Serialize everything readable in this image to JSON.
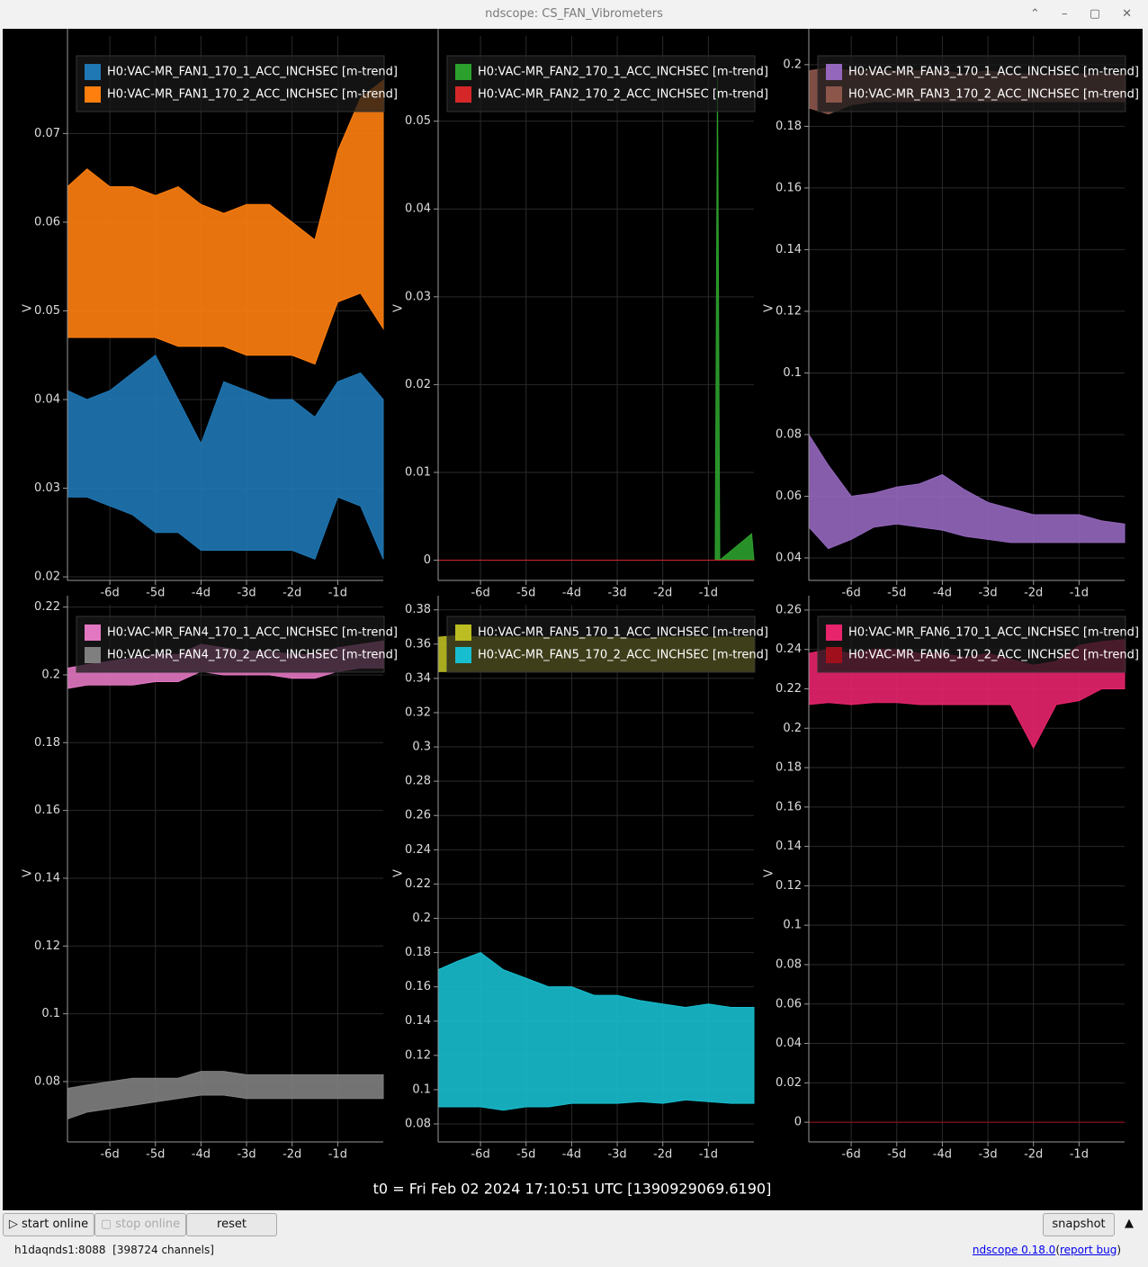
{
  "window": {
    "title": "ndscope: CS_FAN_Vibrometers"
  },
  "t0": "t0 = Fri Feb 02 2024 17:10:51 UTC [1390929069.6190]",
  "buttons": {
    "start": "start online",
    "stop": "stop online",
    "reset": "reset",
    "snapshot": "snapshot"
  },
  "footer": {
    "server": "h1daqnds1:8088  [398724 channels]",
    "version": "ndscope 0.18.0",
    "paren_open": "(",
    "report_bug": "report bug",
    "paren_close": ")"
  },
  "chart_data": [
    {
      "type": "band",
      "y_label": "V",
      "legend": "upper left",
      "grid": true,
      "x": [
        -6.93,
        -6.5,
        -6,
        -5.5,
        -5,
        -4.5,
        -4,
        -3.5,
        -3,
        -2.5,
        -2,
        -1.5,
        -1,
        -0.5,
        0
      ],
      "xlim": [
        -6.93,
        0
      ],
      "xticks": [
        {
          "value": -6,
          "label": "-6d"
        },
        {
          "value": -5,
          "label": "-5d"
        },
        {
          "value": -4,
          "label": "-4d"
        },
        {
          "value": -3,
          "label": "-3d"
        },
        {
          "value": -2,
          "label": "-2d"
        },
        {
          "value": -1,
          "label": "-1d"
        }
      ],
      "ylim": [
        0.0196,
        0.081
      ],
      "yticks": [
        0.02,
        0.03,
        0.04,
        0.05,
        0.06,
        0.07
      ],
      "series": [
        {
          "name": "H0:VAC-MR_FAN1_170_1_ACC_INCHSEC [m-trend]",
          "color": "#1f77b4",
          "lower": [
            0.029,
            0.029,
            0.028,
            0.027,
            0.025,
            0.025,
            0.023,
            0.023,
            0.023,
            0.023,
            0.023,
            0.022,
            0.029,
            0.028,
            0.022
          ],
          "upper": [
            0.041,
            0.04,
            0.041,
            0.043,
            0.045,
            0.04,
            0.035,
            0.042,
            0.041,
            0.04,
            0.04,
            0.038,
            0.042,
            0.043,
            0.04
          ]
        },
        {
          "name": "H0:VAC-MR_FAN1_170_2_ACC_INCHSEC [m-trend]",
          "color": "#ff7f0e",
          "lower": [
            0.047,
            0.047,
            0.047,
            0.047,
            0.047,
            0.046,
            0.046,
            0.046,
            0.045,
            0.045,
            0.045,
            0.044,
            0.051,
            0.052,
            0.048
          ],
          "upper": [
            0.064,
            0.066,
            0.064,
            0.064,
            0.063,
            0.064,
            0.062,
            0.061,
            0.062,
            0.062,
            0.06,
            0.058,
            0.068,
            0.074,
            0.076
          ]
        }
      ]
    },
    {
      "type": "band",
      "y_label": "V",
      "legend": "upper left",
      "grid": true,
      "x": [
        -6.93,
        -6,
        -5,
        -4,
        -3,
        -2,
        -1,
        -0.85,
        -0.8,
        -0.75,
        -0.05,
        0
      ],
      "xlim": [
        -6.93,
        0
      ],
      "xticks": [
        {
          "value": -6,
          "label": "-6d"
        },
        {
          "value": -5,
          "label": "-5d"
        },
        {
          "value": -4,
          "label": "-4d"
        },
        {
          "value": -3,
          "label": "-3d"
        },
        {
          "value": -2,
          "label": "-2d"
        },
        {
          "value": -1,
          "label": "-1d"
        }
      ],
      "ylim": [
        -0.0023,
        0.0597
      ],
      "yticks": [
        0,
        0.01,
        0.02,
        0.03,
        0.04,
        0.05
      ],
      "series": [
        {
          "name": "H0:VAC-MR_FAN2_170_1_ACC_INCHSEC [m-trend]",
          "color": "#2ca02c",
          "lower": [
            0,
            0,
            0,
            0,
            0,
            0,
            0,
            0,
            0,
            0,
            0,
            0
          ],
          "upper": [
            0,
            0,
            0,
            0,
            0,
            0,
            0,
            0,
            0.055,
            0,
            0.003,
            0
          ]
        },
        {
          "name": "H0:VAC-MR_FAN2_170_2_ACC_INCHSEC [m-trend]",
          "color": "#d62728",
          "lower": [
            0,
            0,
            0,
            0,
            0,
            0,
            0,
            0,
            0,
            0,
            0,
            0
          ],
          "upper": [
            0,
            0,
            0,
            0,
            0,
            0,
            0,
            0,
            0,
            0,
            0,
            0
          ]
        }
      ]
    },
    {
      "type": "band",
      "y_label": "V",
      "legend": "upper left",
      "grid": true,
      "x": [
        -6.93,
        -6.5,
        -6,
        -5.5,
        -5,
        -4.5,
        -4,
        -3.5,
        -3,
        -2.5,
        -2,
        -1.5,
        -1,
        -0.5,
        0
      ],
      "xlim": [
        -6.93,
        0
      ],
      "xticks": [
        {
          "value": -6,
          "label": "-6d"
        },
        {
          "value": -5,
          "label": "-5d"
        },
        {
          "value": -4,
          "label": "-4d"
        },
        {
          "value": -3,
          "label": "-3d"
        },
        {
          "value": -2,
          "label": "-2d"
        },
        {
          "value": -1,
          "label": "-1d"
        }
      ],
      "ylim": [
        0.0327,
        0.2093
      ],
      "yticks": [
        0.04,
        0.06,
        0.08,
        0.1,
        0.12,
        0.14,
        0.16,
        0.18,
        0.2
      ],
      "series": [
        {
          "name": "H0:VAC-MR_FAN3_170_1_ACC_INCHSEC [m-trend]",
          "color": "#9467bd",
          "lower": [
            0.05,
            0.043,
            0.046,
            0.05,
            0.051,
            0.05,
            0.049,
            0.047,
            0.046,
            0.045,
            0.045,
            0.045,
            0.045,
            0.045,
            0.045
          ],
          "upper": [
            0.08,
            0.07,
            0.06,
            0.061,
            0.063,
            0.064,
            0.067,
            0.062,
            0.058,
            0.056,
            0.054,
            0.054,
            0.054,
            0.052,
            0.051
          ]
        },
        {
          "name": "H0:VAC-MR_FAN3_170_2_ACC_INCHSEC [m-trend]",
          "color": "#8c564b",
          "lower": [
            0.186,
            0.184,
            0.187,
            0.188,
            0.188,
            0.188,
            0.188,
            0.188,
            0.188,
            0.188,
            0.188,
            0.188,
            0.188,
            0.188,
            0.188
          ],
          "upper": [
            0.198,
            0.199,
            0.198,
            0.198,
            0.198,
            0.198,
            0.198,
            0.197,
            0.198,
            0.197,
            0.197,
            0.197,
            0.197,
            0.197,
            0.197
          ]
        }
      ]
    },
    {
      "type": "band",
      "y_label": "V",
      "legend": "upper left",
      "grid": true,
      "x": [
        -6.93,
        -6.5,
        -6,
        -5.5,
        -5,
        -4.5,
        -4,
        -3.5,
        -3,
        -2.5,
        -2,
        -1.5,
        -1,
        -0.5,
        0
      ],
      "xlim": [
        -6.93,
        0
      ],
      "xticks": [
        {
          "value": -6,
          "label": "-6d"
        },
        {
          "value": -5,
          "label": "-5d"
        },
        {
          "value": -4,
          "label": "-4d"
        },
        {
          "value": -3,
          "label": "-3d"
        },
        {
          "value": -2,
          "label": "-2d"
        },
        {
          "value": -1,
          "label": "-1d"
        }
      ],
      "ylim": [
        0.0622,
        0.2207
      ],
      "yticks": [
        0.08,
        0.1,
        0.12,
        0.14,
        0.16,
        0.18,
        0.2,
        0.22
      ],
      "series": [
        {
          "name": "H0:VAC-MR_FAN4_170_1_ACC_INCHSEC [m-trend]",
          "color": "#e377c2",
          "lower": [
            0.196,
            0.197,
            0.197,
            0.197,
            0.198,
            0.198,
            0.201,
            0.2,
            0.2,
            0.2,
            0.199,
            0.199,
            0.201,
            0.202,
            0.202
          ],
          "upper": [
            0.202,
            0.203,
            0.204,
            0.205,
            0.206,
            0.206,
            0.209,
            0.208,
            0.207,
            0.207,
            0.206,
            0.206,
            0.208,
            0.209,
            0.21
          ]
        },
        {
          "name": "H0:VAC-MR_FAN4_170_2_ACC_INCHSEC [m-trend]",
          "color": "#7f7f7f",
          "lower": [
            0.069,
            0.071,
            0.072,
            0.073,
            0.074,
            0.075,
            0.076,
            0.076,
            0.075,
            0.075,
            0.075,
            0.075,
            0.075,
            0.075,
            0.075
          ],
          "upper": [
            0.078,
            0.079,
            0.08,
            0.081,
            0.081,
            0.081,
            0.083,
            0.083,
            0.082,
            0.082,
            0.082,
            0.082,
            0.082,
            0.082,
            0.082
          ]
        }
      ]
    },
    {
      "type": "band",
      "y_label": "V",
      "legend": "upper left",
      "grid": true,
      "x": [
        -6.93,
        -6.5,
        -6,
        -5.5,
        -5,
        -4.5,
        -4,
        -3.5,
        -3,
        -2.5,
        -2,
        -1.5,
        -1,
        -0.5,
        0
      ],
      "xlim": [
        -6.93,
        0
      ],
      "xticks": [
        {
          "value": -6,
          "label": "-6d"
        },
        {
          "value": -5,
          "label": "-5d"
        },
        {
          "value": -4,
          "label": "-4d"
        },
        {
          "value": -3,
          "label": "-3d"
        },
        {
          "value": -2,
          "label": "-2d"
        },
        {
          "value": -1,
          "label": "-1d"
        }
      ],
      "ylim": [
        0.0695,
        0.383
      ],
      "yticks": [
        0.08,
        0.1,
        0.12,
        0.14,
        0.16,
        0.18,
        0.2,
        0.22,
        0.24,
        0.26,
        0.28,
        0.3,
        0.32,
        0.34,
        0.36,
        0.38
      ],
      "series": [
        {
          "name": "H0:VAC-MR_FAN5_170_1_ACC_INCHSEC [m-trend]",
          "color": "#bcbd22",
          "lower": [
            0.344,
            0.344,
            0.344,
            0.344,
            0.344,
            0.344,
            0.344,
            0.344,
            0.344,
            0.344,
            0.344,
            0.344,
            0.344,
            0.344,
            0.344
          ],
          "upper": [
            0.364,
            0.365,
            0.364,
            0.364,
            0.364,
            0.364,
            0.364,
            0.364,
            0.364,
            0.363,
            0.364,
            0.364,
            0.364,
            0.364,
            0.364
          ]
        },
        {
          "name": "H0:VAC-MR_FAN5_170_2_ACC_INCHSEC [m-trend]",
          "color": "#17becf",
          "lower": [
            0.09,
            0.09,
            0.09,
            0.088,
            0.09,
            0.09,
            0.092,
            0.092,
            0.092,
            0.093,
            0.092,
            0.094,
            0.093,
            0.092,
            0.092
          ],
          "upper": [
            0.17,
            0.175,
            0.18,
            0.17,
            0.165,
            0.16,
            0.16,
            0.155,
            0.155,
            0.152,
            0.15,
            0.148,
            0.15,
            0.148,
            0.148
          ]
        }
      ]
    },
    {
      "type": "band",
      "y_label": "V",
      "legend": "upper left",
      "grid": true,
      "x": [
        -6.93,
        -6.5,
        -6,
        -5.5,
        -5,
        -4.5,
        -4,
        -3.5,
        -3,
        -2.5,
        -2,
        -1.5,
        -1,
        -0.5,
        0
      ],
      "xlim": [
        -6.93,
        0
      ],
      "xticks": [
        {
          "value": -6,
          "label": "-6d"
        },
        {
          "value": -5,
          "label": "-5d"
        },
        {
          "value": -4,
          "label": "-4d"
        },
        {
          "value": -3,
          "label": "-3d"
        },
        {
          "value": -2,
          "label": "-2d"
        },
        {
          "value": -1,
          "label": "-1d"
        }
      ],
      "ylim": [
        -0.01,
        0.2627
      ],
      "yticks": [
        0,
        0.02,
        0.04,
        0.06,
        0.08,
        0.1,
        0.12,
        0.14,
        0.16,
        0.18,
        0.2,
        0.22,
        0.24,
        0.26
      ],
      "series": [
        {
          "name": "H0:VAC-MR_FAN6_170_1_ACC_INCHSEC [m-trend]",
          "color": "#e8246c",
          "lower": [
            0.212,
            0.213,
            0.212,
            0.213,
            0.213,
            0.212,
            0.212,
            0.212,
            0.212,
            0.212,
            0.19,
            0.212,
            0.214,
            0.22,
            0.22
          ],
          "upper": [
            0.238,
            0.24,
            0.238,
            0.24,
            0.24,
            0.238,
            0.238,
            0.236,
            0.238,
            0.235,
            0.232,
            0.234,
            0.242,
            0.244,
            0.245
          ]
        },
        {
          "name": "H0:VAC-MR_FAN6_170_2_ACC_INCHSEC [m-trend]",
          "color": "#a0101c",
          "lower": [
            0,
            0,
            0,
            0,
            0,
            0,
            0,
            0,
            0,
            0,
            0,
            0,
            0,
            0,
            0
          ],
          "upper": [
            0,
            0,
            0,
            0,
            0,
            0,
            0,
            0,
            0,
            0,
            0,
            0,
            0,
            0,
            0
          ]
        }
      ]
    }
  ]
}
